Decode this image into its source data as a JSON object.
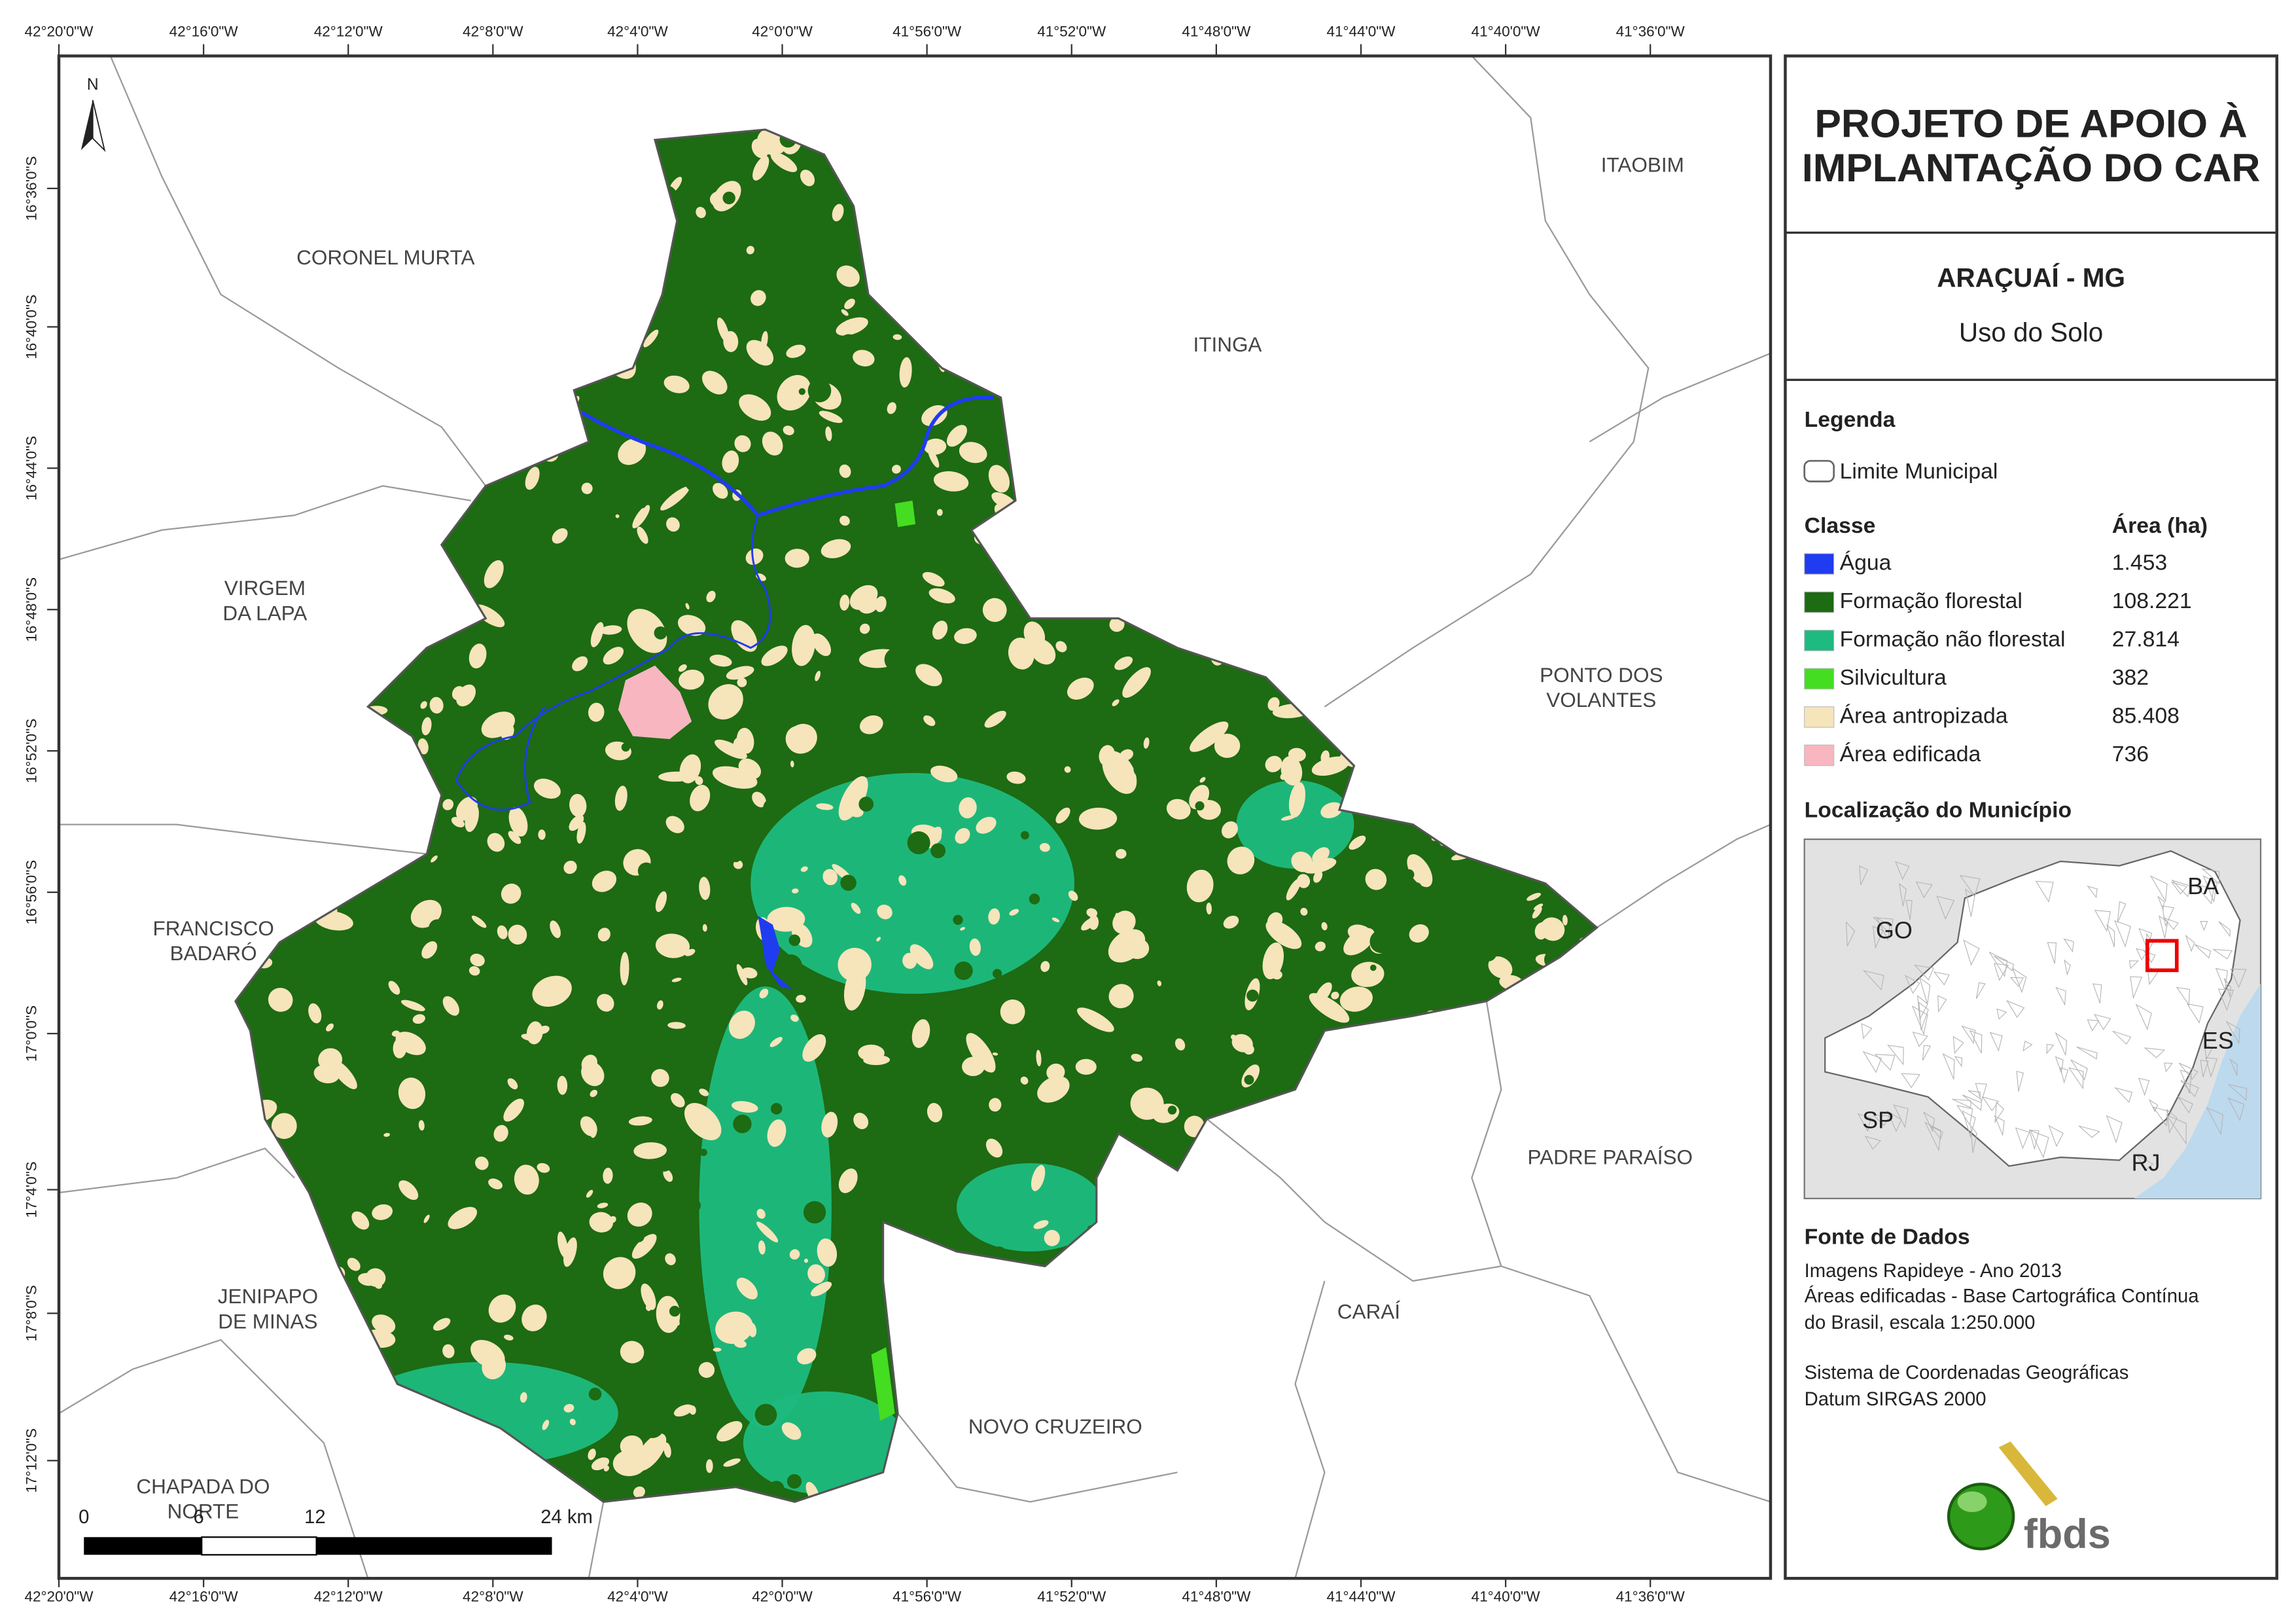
{
  "title": {
    "lines": [
      "PROJETO DE APOIO À",
      "IMPLANTAÇÃO DO CAR"
    ]
  },
  "subtitle": {
    "place": "ARAÇUAÍ - MG",
    "theme": "Uso do Solo"
  },
  "legend": {
    "heading": "Legenda",
    "boundary": "Limite Municipal",
    "class_header": "Classe",
    "area_header": "Área (ha)",
    "classes": [
      {
        "name": "Água",
        "area": "1.453",
        "color": "#1f3cf0"
      },
      {
        "name": "Formação florestal",
        "area": "108.221",
        "color": "#1d6b12"
      },
      {
        "name": "Formação não florestal",
        "area": "27.814",
        "color": "#1dbb80"
      },
      {
        "name": "Silvicultura",
        "area": "382",
        "color": "#44dd22"
      },
      {
        "name": "Área antropizada",
        "area": "85.408",
        "color": "#f6e4bb"
      },
      {
        "name": "Área edificada",
        "area": "736",
        "color": "#f7b6c0"
      }
    ]
  },
  "location": {
    "heading": "Localização do Município",
    "states": [
      "GO",
      "BA",
      "ES",
      "SP",
      "RJ"
    ]
  },
  "sources": {
    "heading": "Fonte de Dados",
    "lines": [
      "Imagens Rapideye - Ano 2013",
      "Áreas edificadas - Base Cartográfica Contínua",
      "do Brasil, escala 1:250.000",
      "Sistema de Coordenadas Geográficas",
      "Datum SIRGAS 2000"
    ]
  },
  "logo": {
    "text": "fbds"
  },
  "map": {
    "north": "N",
    "longitudes": [
      "42°20'0\"W",
      "42°16'0\"W",
      "42°12'0\"W",
      "42°8'0\"W",
      "42°4'0\"W",
      "42°0'0\"W",
      "41°56'0\"W",
      "41°52'0\"W",
      "41°48'0\"W",
      "41°44'0\"W",
      "41°40'0\"W",
      "41°36'0\"W"
    ],
    "latitudes": [
      "16°36'0\"S",
      "16°40'0\"S",
      "16°44'0\"S",
      "16°48'0\"S",
      "16°52'0\"S",
      "16°56'0\"S",
      "17°0'0\"S",
      "17°4'0\"S",
      "17°8'0\"S",
      "17°12'0\"S"
    ],
    "municipalities": [
      {
        "lines": [
          "CORONEL MURTA"
        ]
      },
      {
        "lines": [
          "ITAOBIM"
        ]
      },
      {
        "lines": [
          "ITINGA"
        ]
      },
      {
        "lines": [
          "VIRGEM",
          "DA LAPA"
        ]
      },
      {
        "lines": [
          "PONTO DOS",
          "VOLANTES"
        ]
      },
      {
        "lines": [
          "FRANCISCO",
          "BADARÓ"
        ]
      },
      {
        "lines": [
          "PADRE PARAÍSO"
        ]
      },
      {
        "lines": [
          "JENIPAPO",
          "DE MINAS"
        ]
      },
      {
        "lines": [
          "CARAÍ"
        ]
      },
      {
        "lines": [
          "NOVO CRUZEIRO"
        ]
      },
      {
        "lines": [
          "CHAPADA DO",
          "NORTE"
        ]
      }
    ],
    "scale_bar": [
      "0",
      "6",
      "12",
      "24 km"
    ]
  }
}
